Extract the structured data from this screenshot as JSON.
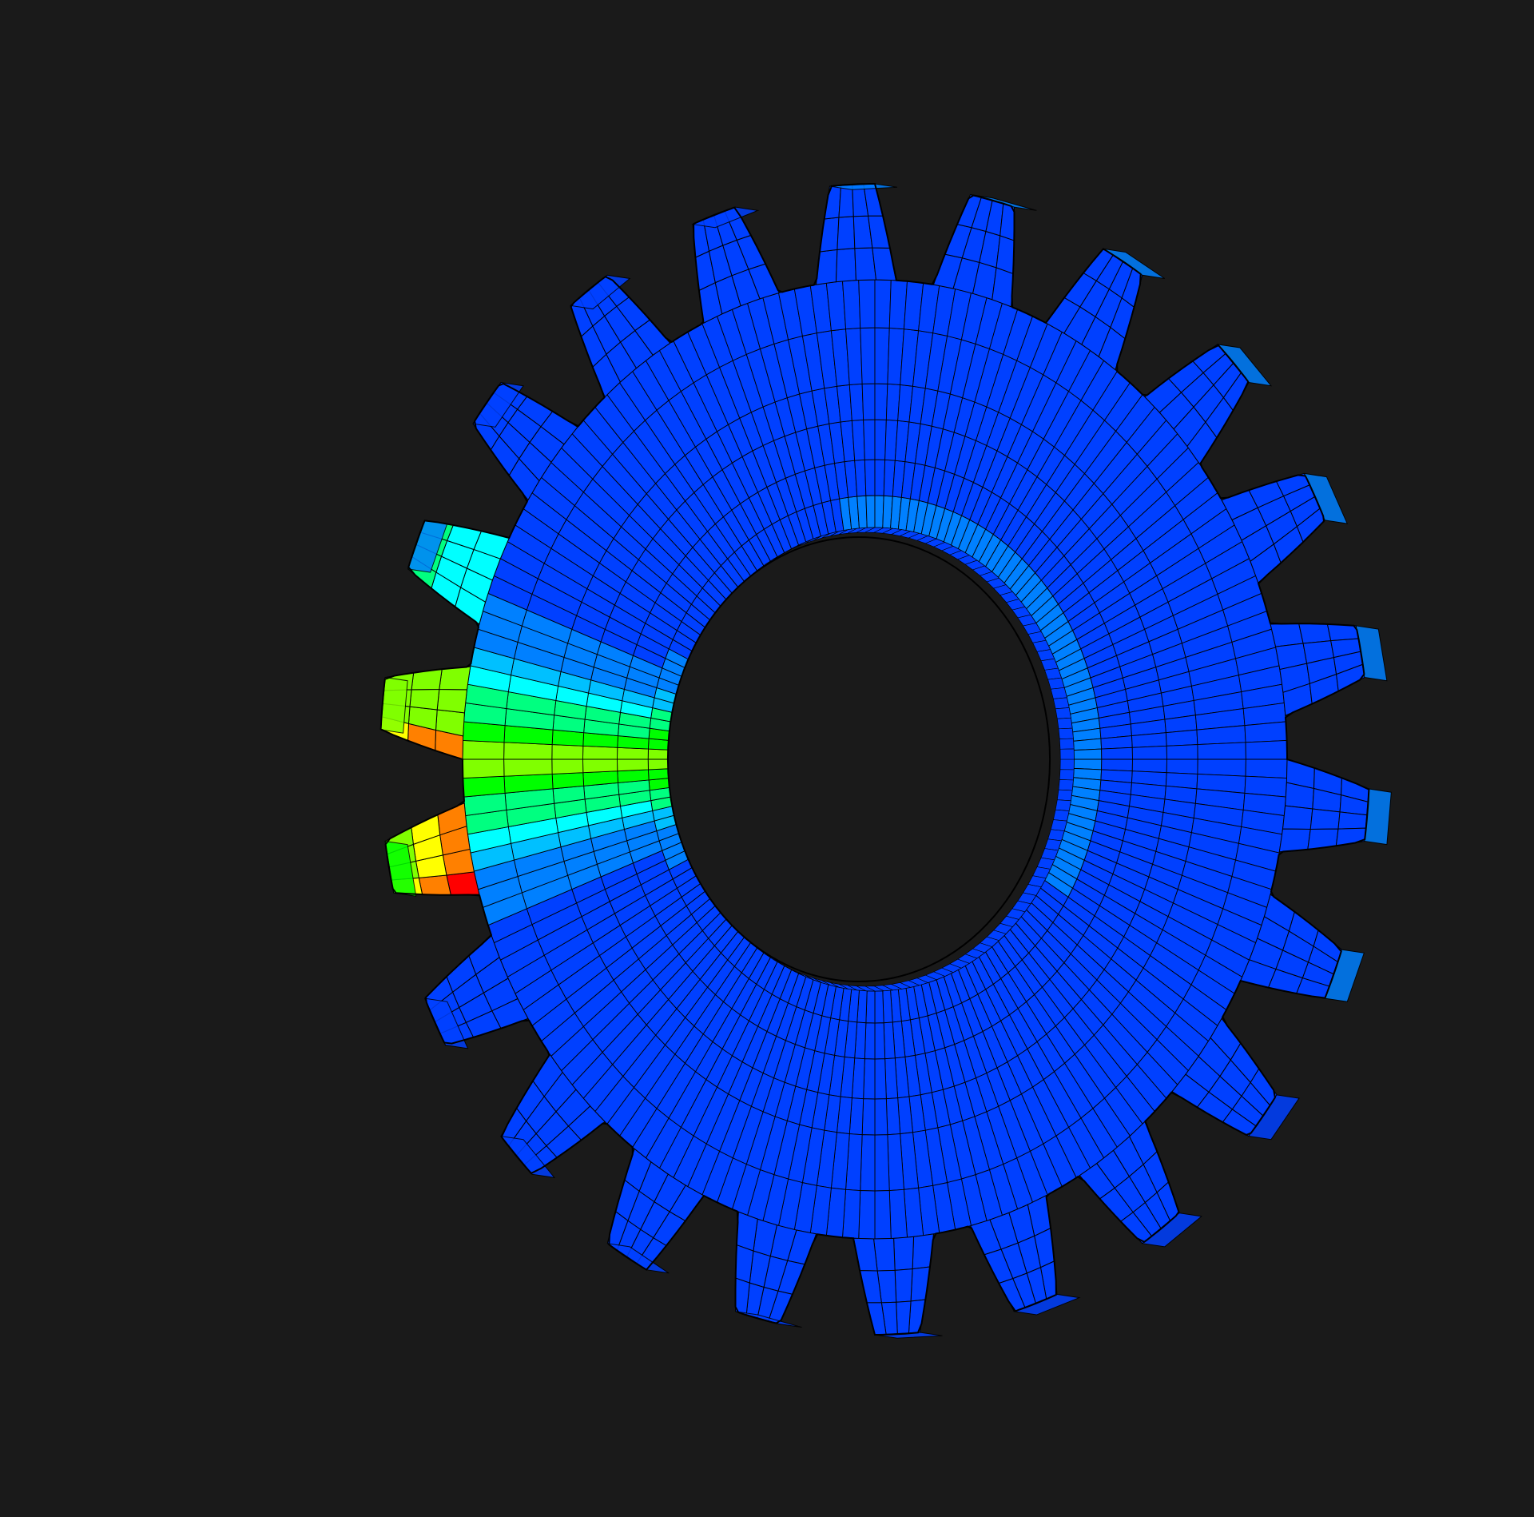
{
  "viewport": {
    "background": "#1a1a1a",
    "model": "gear",
    "view": "3d-oblique",
    "mesh_edges": "visible",
    "contour_result": "stress",
    "tooth_count": 22
  },
  "colormap": [
    "#0000ff",
    "#0040ff",
    "#0080ff",
    "#00c0ff",
    "#00ffff",
    "#00ff80",
    "#00ff00",
    "#80ff00",
    "#ffff00",
    "#ff8000",
    "#ff0000"
  ],
  "edge_color": "#000000",
  "hot_tooth_levels": [
    0.85,
    0.62,
    0.9
  ]
}
